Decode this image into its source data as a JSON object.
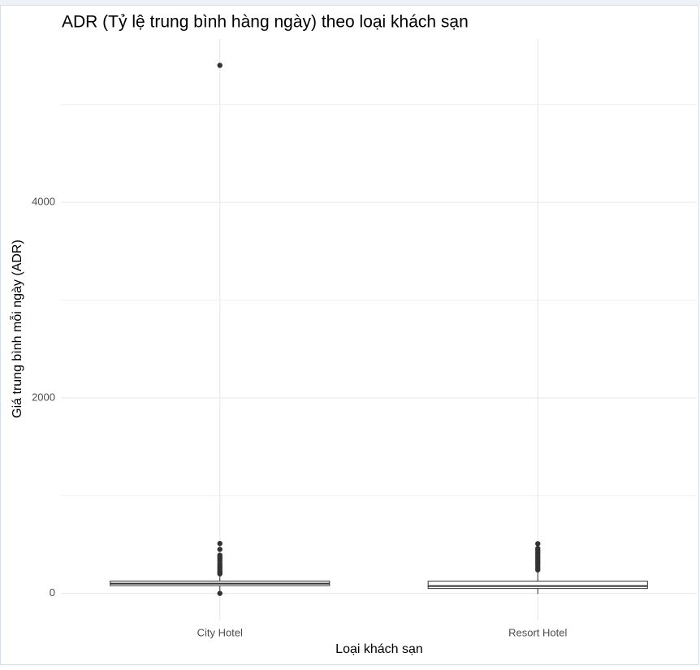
{
  "chart_data": {
    "type": "box",
    "title": "ADR (Tỷ lệ trung bình hàng ngày) theo loại khách sạn",
    "x_label": "Loại khách sạn",
    "y_label": "Giá trung bình mỗi ngày (ADR)",
    "categories": [
      "City Hotel",
      "Resort Hotel"
    ],
    "boxes": [
      {
        "whisker_low": 10,
        "q1": 79,
        "median": 100,
        "q3": 126,
        "whisker_high": 196,
        "outliers": [
          0,
          200,
          215,
          230,
          250,
          270,
          290,
          310,
          330,
          350,
          370,
          390,
          450,
          510,
          5400
        ]
      },
      {
        "whisker_low": -6,
        "q1": 50,
        "median": 75,
        "q3": 125,
        "whisker_high": 237,
        "outliers": [
          240,
          260,
          280,
          300,
          320,
          340,
          360,
          380,
          400,
          420,
          440,
          460,
          508
        ]
      }
    ],
    "color": "#333333",
    "ylim": [
      -277,
      5670
    ],
    "yticks": [
      0,
      2000,
      4000
    ],
    "minor_yticks": [
      1000,
      3000,
      5000
    ],
    "grid": true
  }
}
